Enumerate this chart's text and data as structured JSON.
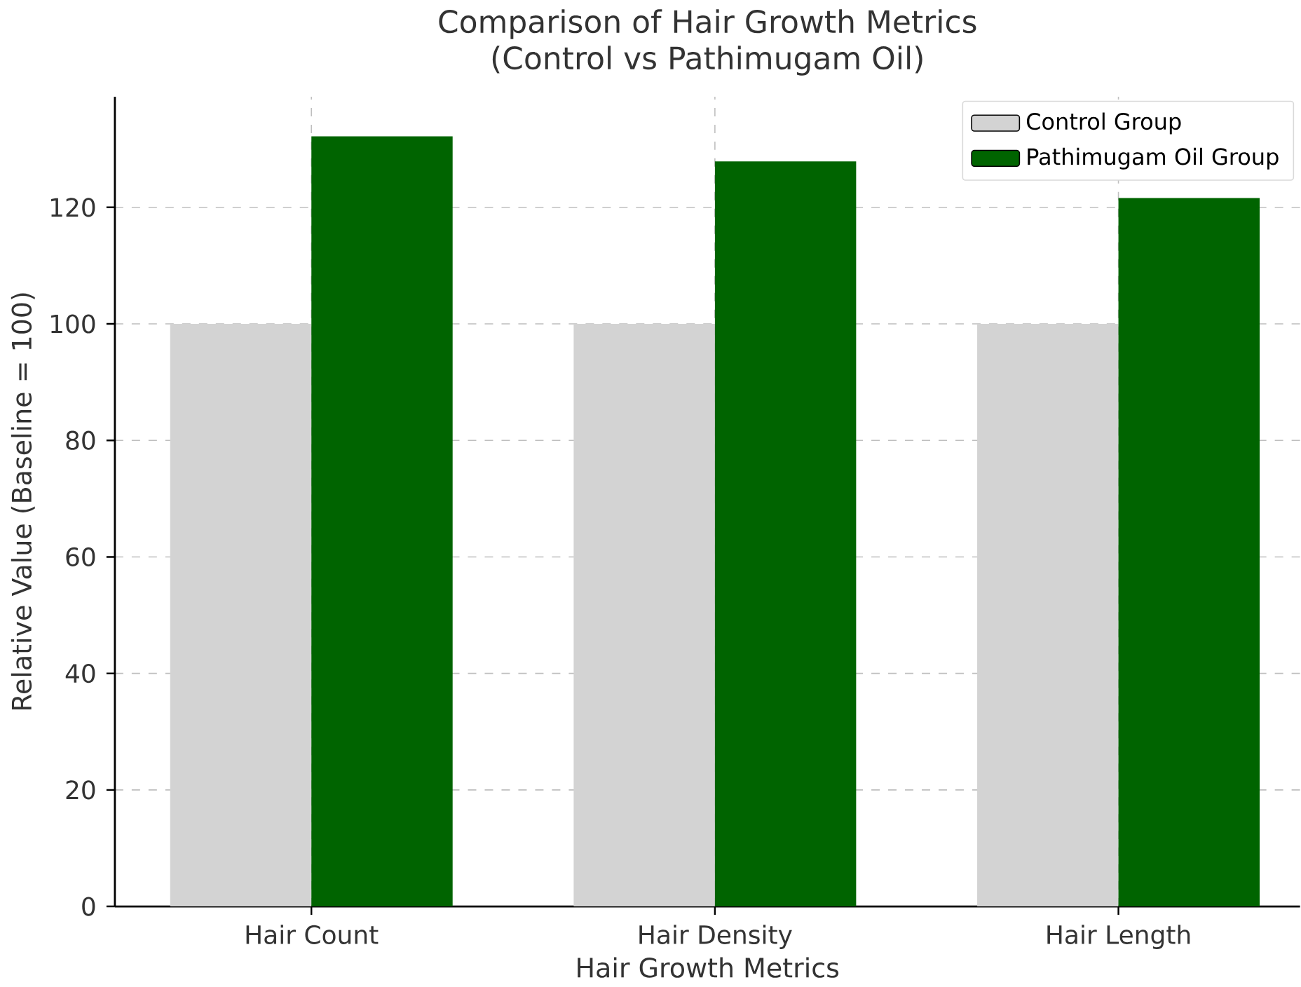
{
  "chart_data": {
    "type": "bar",
    "title": "Comparison of Hair Growth Metrics",
    "subtitle": "(Control vs Pathimugam Oil)",
    "xlabel": "Hair Growth Metrics",
    "ylabel": "Relative Value (Baseline = 100)",
    "categories": [
      "Hair Count",
      "Hair Density",
      "Hair Length"
    ],
    "series": [
      {
        "name": "Control Group",
        "color": "#d3d3d3",
        "values": [
          100,
          100,
          100
        ]
      },
      {
        "name": "Pathimugam Oil Group",
        "color": "#006400",
        "values": [
          132.2,
          127.9,
          121.6
        ]
      }
    ],
    "ylim": [
      0,
      139
    ],
    "yticks": [
      0,
      20,
      40,
      60,
      80,
      100,
      120
    ],
    "grid": true,
    "legend": "top right"
  }
}
